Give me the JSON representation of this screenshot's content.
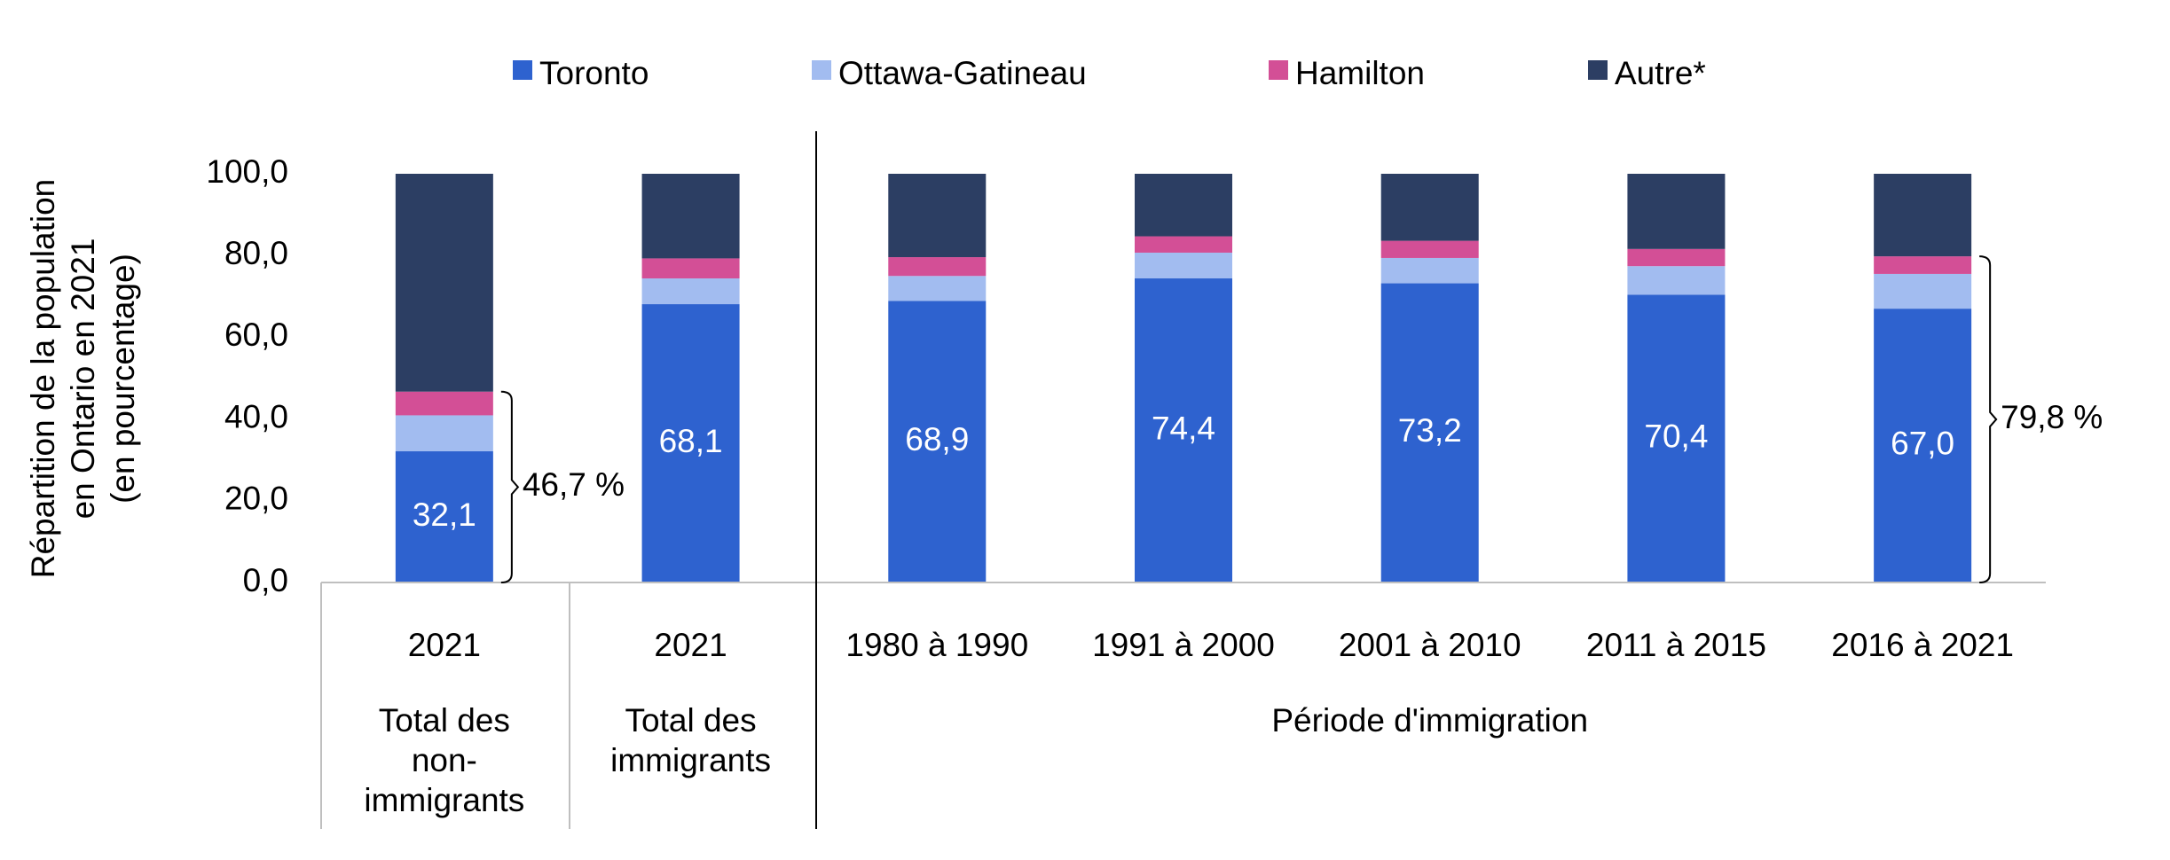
{
  "chart_data": {
    "type": "bar",
    "stacked": true,
    "y_axis": {
      "label_lines": [
        "Répartition de la population",
        "en Ontario en 2021",
        "(en pourcentage)"
      ],
      "ylim": [
        0,
        100
      ],
      "ticks": [
        "0,0",
        "20,0",
        "40,0",
        "60,0",
        "80,0",
        "100,0"
      ],
      "grid": false
    },
    "legend_position": "top",
    "categories": [
      "2021",
      "2021",
      "1980 à 1990",
      "1991 à 2000",
      "2001 à 2010",
      "2011 à 2015",
      "2016 à 2021"
    ],
    "groups": [
      {
        "label_lines": [
          "Total des",
          "non-",
          "immigrants"
        ],
        "categories": [
          0
        ]
      },
      {
        "label_lines": [
          "Total des",
          "immigrants"
        ],
        "categories": [
          1
        ]
      },
      {
        "label_lines": [
          "Période d'immigration"
        ],
        "categories": [
          2,
          3,
          4,
          5,
          6
        ]
      }
    ],
    "series": [
      {
        "name": "Toronto",
        "color": "#2e62cf",
        "values": [
          32.1,
          68.1,
          68.9,
          74.4,
          73.2,
          70.4,
          67.0
        ],
        "data_labels": [
          "32,1",
          "68,1",
          "68,9",
          "74,4",
          "73,2",
          "70,4",
          "67,0"
        ]
      },
      {
        "name": "Ottawa-Gatineau",
        "color": "#a2bcf0",
        "values": [
          8.8,
          6.3,
          6.1,
          6.3,
          6.2,
          7.0,
          8.5
        ]
      },
      {
        "name": "Hamilton",
        "color": "#d34f96",
        "values": [
          5.8,
          4.9,
          4.6,
          4.0,
          4.2,
          4.2,
          4.3
        ]
      },
      {
        "name": "Autre*",
        "color": "#2c3e63",
        "values": [
          53.3,
          20.7,
          20.4,
          15.3,
          16.4,
          18.4,
          20.2
        ]
      }
    ],
    "annotations": [
      {
        "text": "46,7 %",
        "category": 0,
        "from": 0,
        "to": 46.7,
        "side": "right"
      },
      {
        "text": "79,8 %",
        "category": 6,
        "from": 0,
        "to": 79.8,
        "side": "right"
      }
    ]
  }
}
